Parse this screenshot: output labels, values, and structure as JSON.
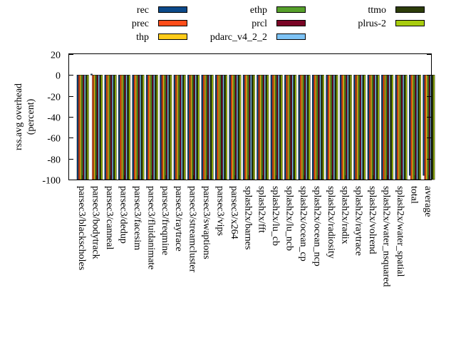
{
  "chart_data": {
    "type": "bar",
    "title": "",
    "xlabel": "",
    "ylabel": "rss.avg overhead\n(percent)",
    "ylabel_lines": [
      "rss.avg overhead",
      "(percent)"
    ],
    "ylim": [
      -100,
      20
    ],
    "yticks": [
      20,
      0,
      -20,
      -40,
      -60,
      -80,
      -100
    ],
    "grid": false,
    "legend_placement": "top",
    "categories": [
      "parsec3/blackscholes",
      "parsec3/bodytrack",
      "parsec3/canneal",
      "parsec3/dedup",
      "parsec3/facesim",
      "parsec3/fluidanimate",
      "parsec3/freqmine",
      "parsec3/raytrace",
      "parsec3/streamcluster",
      "parsec3/swaptions",
      "parsec3/vips",
      "parsec3/x264",
      "splash2x/barnes",
      "splash2x/fft",
      "splash2x/lu_cb",
      "splash2x/lu_ncb",
      "splash2x/ocean_cp",
      "splash2x/ocean_ncp",
      "splash2x/radiosity",
      "splash2x/radix",
      "splash2x/raytrace",
      "splash2x/volrend",
      "splash2x/water_nsquared",
      "splash2x/water_spatial",
      "total",
      "average"
    ],
    "series": [
      {
        "name": "rec",
        "color": "#0c4a8a",
        "values": [
          -100,
          1,
          -100,
          -100,
          -100,
          -100,
          -100,
          -100,
          -100,
          -100,
          -100,
          -100,
          -100,
          -100,
          -100,
          -100,
          -100,
          -100,
          -100,
          -100,
          -100,
          -100,
          -100,
          -100,
          -96,
          -96
        ]
      },
      {
        "name": "prec",
        "color": "#ff4d1a",
        "values": [
          -100,
          -100,
          -100,
          -100,
          -100,
          -100,
          -100,
          -100,
          -100,
          -100,
          -100,
          -100,
          -100,
          -100,
          -100,
          -100,
          -100,
          -100,
          -100,
          -100,
          -100,
          -100,
          -100,
          -100,
          -100,
          -100
        ]
      },
      {
        "name": "thp",
        "color": "#ffcc1a",
        "values": [
          -100,
          -100,
          -100,
          -100,
          -100,
          -100,
          -100,
          -100,
          -100,
          -100,
          -100,
          -100,
          -100,
          -100,
          -100,
          -100,
          -100,
          -100,
          -100,
          -100,
          -100,
          -100,
          -100,
          -100,
          -100,
          -100
        ]
      },
      {
        "name": "ethp",
        "color": "#56a02b",
        "values": [
          -100,
          -100,
          -100,
          -100,
          -100,
          -100,
          -100,
          -100,
          -100,
          -100,
          -100,
          -100,
          -100,
          -100,
          -100,
          -100,
          -100,
          -100,
          -100,
          -100,
          -100,
          -100,
          -100,
          -100,
          -100,
          -100
        ]
      },
      {
        "name": "prcl",
        "color": "#7a0526",
        "values": [
          -100,
          -100,
          -100,
          -100,
          -100,
          -100,
          -100,
          -100,
          -100,
          -100,
          -100,
          -100,
          -100,
          -100,
          -100,
          -100,
          -100,
          -100,
          -100,
          -100,
          -100,
          -100,
          -100,
          -100,
          -100,
          -100
        ]
      },
      {
        "name": "pdarc_v4_2_2",
        "color": "#7ec3f5",
        "values": [
          -100,
          -100,
          -100,
          -100,
          -100,
          -100,
          -100,
          -100,
          -100,
          -100,
          -100,
          -100,
          -100,
          -100,
          -100,
          -100,
          -100,
          -100,
          -100,
          -100,
          -100,
          -100,
          -100,
          -100,
          -100,
          -100
        ]
      },
      {
        "name": "ttmo",
        "color": "#2d3d0a",
        "values": [
          -100,
          -100,
          -100,
          -100,
          -100,
          -100,
          -100,
          -100,
          -100,
          -100,
          -100,
          -100,
          -100,
          -100,
          -100,
          -100,
          -100,
          -100,
          -100,
          -100,
          -100,
          -100,
          -100,
          -100,
          -100,
          -100
        ]
      },
      {
        "name": "plrus-2",
        "color": "#a8cc0e",
        "values": [
          -100,
          -100,
          -100,
          -100,
          -100,
          -100,
          -100,
          -100,
          -100,
          -100,
          -100,
          -100,
          -100,
          -100,
          -100,
          -100,
          -100,
          -100,
          -100,
          -100,
          -100,
          -100,
          -100,
          -100,
          -100,
          -100
        ]
      }
    ]
  }
}
